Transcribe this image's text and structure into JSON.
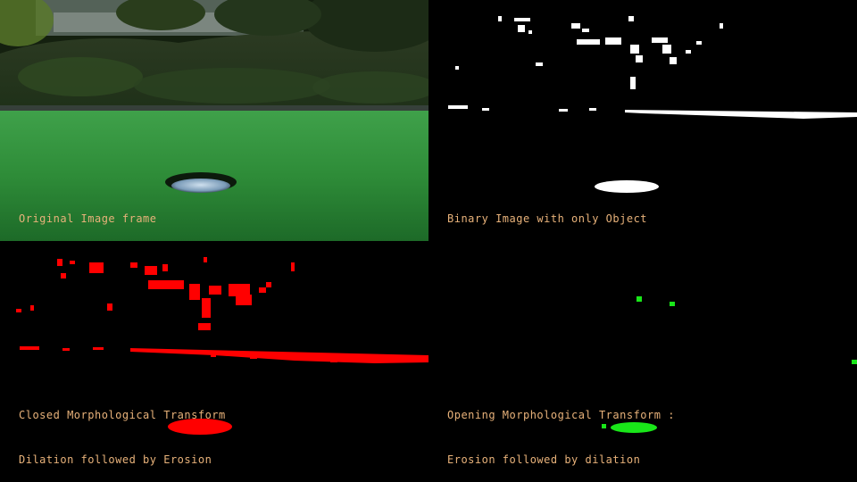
{
  "colors": {
    "label": "#e8b27a",
    "closed_mask": "#ff0000",
    "opened_mask": "#19e619",
    "binary_mask": "#ffffff",
    "grass": "#2f9a3a",
    "background": "#000000"
  },
  "panels": {
    "original": {
      "label": "Original Image frame"
    },
    "binary": {
      "label": "Binary Image with only Object"
    },
    "closed": {
      "label": "Closed Morphological Transform",
      "sublabel": "Dilation followed by Erosion"
    },
    "opened": {
      "label": "Opening Morphological Transform :",
      "sublabel": "Erosion followed by dilation"
    }
  }
}
